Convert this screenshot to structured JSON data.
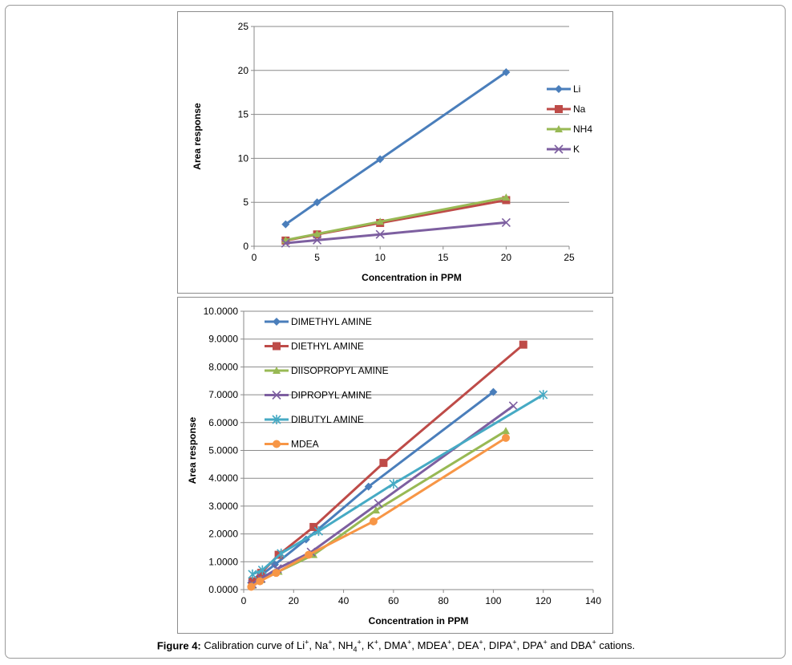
{
  "caption": {
    "label": "Figure 4:",
    "text_parts": [
      "Calibration curve of Li",
      "+",
      ", Na",
      "+",
      ", NH",
      "4",
      "+",
      ", K",
      "+",
      ", DMA",
      "+",
      ", MDEA",
      "+",
      ", DEA",
      "+",
      ", DIPA",
      "+",
      ", DPA",
      "+",
      " and DBA",
      "+",
      " cations."
    ]
  },
  "chart_data": [
    {
      "type": "line",
      "title": "",
      "xlabel": "Concentration in PPM",
      "ylabel": "Area response",
      "xlim": [
        0,
        25
      ],
      "ylim": [
        0,
        25
      ],
      "x_ticks": [
        "0",
        "5",
        "10",
        "15",
        "20",
        "25"
      ],
      "y_ticks": [
        "0",
        "5",
        "10",
        "15",
        "20",
        "25"
      ],
      "grid": "horizontal",
      "legend_position": "right",
      "series": [
        {
          "name": "Li",
          "color": "#4a7ebb",
          "marker": "diamond",
          "x": [
            2.5,
            5,
            10,
            20
          ],
          "y": [
            2.5,
            5.0,
            9.9,
            19.8
          ]
        },
        {
          "name": "Na",
          "color": "#be4b48",
          "marker": "square",
          "x": [
            2.5,
            5,
            10,
            20
          ],
          "y": [
            0.65,
            1.35,
            2.65,
            5.25
          ]
        },
        {
          "name": "NH4",
          "color": "#98b954",
          "marker": "triangle",
          "x": [
            2.5,
            5,
            10,
            20
          ],
          "y": [
            0.7,
            1.4,
            2.8,
            5.55
          ]
        },
        {
          "name": "K",
          "color": "#7d5fa0",
          "marker": "x",
          "x": [
            2.5,
            5,
            10,
            20
          ],
          "y": [
            0.35,
            0.7,
            1.35,
            2.7
          ]
        }
      ]
    },
    {
      "type": "line",
      "title": "",
      "xlabel": "Concentration in PPM",
      "ylabel": "Area response",
      "xlim": [
        0,
        140
      ],
      "ylim": [
        0,
        10
      ],
      "x_ticks": [
        "0",
        "20",
        "40",
        "60",
        "80",
        "100",
        "120",
        "140"
      ],
      "y_ticks": [
        "0.0000",
        "1.0000",
        "2.0000",
        "3.0000",
        "4.0000",
        "5.0000",
        "6.0000",
        "7.0000",
        "8.0000",
        "9.0000",
        "10.0000"
      ],
      "grid": "horizontal",
      "legend_position": "top-left",
      "series": [
        {
          "name": "DIMETHYL AMINE",
          "color": "#4a7ebb",
          "marker": "diamond",
          "x": [
            3,
            6,
            12.5,
            25,
            50,
            100
          ],
          "y": [
            0.25,
            0.45,
            0.9,
            1.8,
            3.7,
            7.1
          ]
        },
        {
          "name": "DIETHYL AMINE",
          "color": "#be4b48",
          "marker": "square",
          "x": [
            3.5,
            7,
            14,
            28,
            56,
            112
          ],
          "y": [
            0.3,
            0.6,
            1.25,
            2.25,
            4.55,
            8.8
          ]
        },
        {
          "name": "DIISOPROPYL AMINE",
          "color": "#98b954",
          "marker": "triangle",
          "x": [
            3.5,
            7,
            14,
            28,
            53,
            105
          ],
          "y": [
            0.15,
            0.35,
            0.65,
            1.25,
            2.85,
            5.7
          ]
        },
        {
          "name": "DIPROPYL AMINE",
          "color": "#7d5fa0",
          "marker": "x",
          "x": [
            3.5,
            7,
            13.5,
            27,
            54,
            108
          ],
          "y": [
            0.2,
            0.4,
            0.75,
            1.35,
            3.1,
            6.6
          ]
        },
        {
          "name": "DIBUTYL AMINE",
          "color": "#46aac4",
          "marker": "star",
          "x": [
            3.5,
            7.5,
            15,
            30,
            60,
            120
          ],
          "y": [
            0.55,
            0.7,
            1.3,
            2.1,
            3.8,
            7.0
          ]
        },
        {
          "name": "MDEA",
          "color": "#f79646",
          "marker": "circle",
          "x": [
            3,
            6.5,
            13,
            26,
            52,
            105
          ],
          "y": [
            0.1,
            0.3,
            0.6,
            1.25,
            2.45,
            5.45
          ]
        }
      ]
    }
  ]
}
